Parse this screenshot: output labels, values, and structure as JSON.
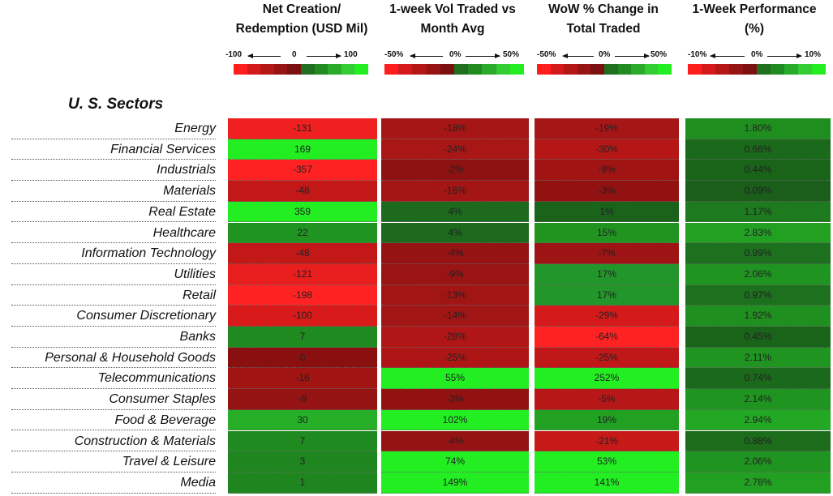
{
  "palette": {
    "swatches": [
      "#ff1e1e",
      "#d41a1a",
      "#b51616",
      "#961414",
      "#7a1010",
      "#1f6f1f",
      "#218a21",
      "#2aaa2a",
      "#33cc33",
      "#22ee22"
    ],
    "neg_strong": "#ff2222",
    "neg_mid": "#c81919",
    "neg_dark": "#9e1414",
    "pos_dark": "#1d6a1d",
    "pos_mid": "#22962a",
    "pos_strong": "#22ee22"
  },
  "section_title": "U. S. Sectors",
  "columns": [
    {
      "header_line1": "Net Creation/",
      "header_line2": "Redemption (USD Mil)",
      "scale_min": "-100",
      "scale_mid": "0",
      "scale_max": "100"
    },
    {
      "header_line1": "1-week Vol Traded vs",
      "header_line2": "Month Avg",
      "scale_min": "-50%",
      "scale_mid": "0%",
      "scale_max": "50%"
    },
    {
      "header_line1": "WoW % Change in",
      "header_line2": "Total Traded",
      "scale_min": "-50%",
      "scale_mid": "0%",
      "scale_max": "50%"
    },
    {
      "header_line1": "1-Week Performance",
      "header_line2": "(%)",
      "scale_min": "-10%",
      "scale_mid": "0%",
      "scale_max": "10%"
    }
  ],
  "chart_data": {
    "type": "table",
    "title": "U. S. Sectors",
    "columns": [
      "Net Creation/ Redemption (USD Mil)",
      "1-week Vol Traded vs Month Avg",
      "WoW % Change in Total Traded",
      "1-Week Performance (%)"
    ],
    "rows": [
      {
        "sector": "Energy",
        "values": [
          "-131",
          "-18%",
          "-19%",
          "1.80%"
        ],
        "colors": [
          "#f02020",
          "#a61616",
          "#a61616",
          "#1e8f1e"
        ]
      },
      {
        "sector": "Financial Services",
        "values": [
          "169",
          "-24%",
          "-30%",
          "0.66%"
        ],
        "colors": [
          "#22ee22",
          "#a81616",
          "#b51717",
          "#1b6a1b"
        ]
      },
      {
        "sector": "Industrials",
        "values": [
          "-357",
          "-2%",
          "-8%",
          "0.44%"
        ],
        "colors": [
          "#ff2222",
          "#8e1212",
          "#a01414",
          "#1a641a"
        ]
      },
      {
        "sector": "Materials",
        "values": [
          "-48",
          "-16%",
          "-3%",
          "0.09%"
        ],
        "colors": [
          "#c21818",
          "#a41515",
          "#921212",
          "#1a5e1a"
        ]
      },
      {
        "sector": "Real Estate",
        "values": [
          "359",
          "4%",
          "1%",
          "1.17%"
        ],
        "colors": [
          "#22ee22",
          "#1d6a1d",
          "#1b621b",
          "#1e7a1e"
        ]
      },
      {
        "sector": "Healthcare",
        "values": [
          "22",
          "4%",
          "15%",
          "2.83%"
        ],
        "colors": [
          "#209420",
          "#1d6a1d",
          "#21941f",
          "#22a022"
        ]
      },
      {
        "sector": "Information Technology",
        "values": [
          "-48",
          "-4%",
          "-7%",
          "0.99%"
        ],
        "colors": [
          "#c21818",
          "#961313",
          "#9e1414",
          "#1d701d"
        ]
      },
      {
        "sector": "Utilities",
        "values": [
          "-121",
          "-9%",
          "17%",
          "2.06%"
        ],
        "colors": [
          "#e81e1e",
          "#9a1414",
          "#22962a",
          "#209420"
        ]
      },
      {
        "sector": "Retail",
        "values": [
          "-198",
          "-13%",
          "17%",
          "0.97%"
        ],
        "colors": [
          "#ff2222",
          "#a21515",
          "#22962a",
          "#1d701d"
        ]
      },
      {
        "sector": "Consumer Discretionary",
        "values": [
          "-100",
          "-14%",
          "-29%",
          "1.92%"
        ],
        "colors": [
          "#d81a1a",
          "#a21515",
          "#d41a1a",
          "#1f901f"
        ]
      },
      {
        "sector": "Banks",
        "values": [
          "7",
          "-28%",
          "-64%",
          "0.45%"
        ],
        "colors": [
          "#1f8a1f",
          "#b01616",
          "#ff2222",
          "#1a641a"
        ]
      },
      {
        "sector": "Personal & Household Goods",
        "values": [
          "0",
          "-25%",
          "-25%",
          "2.11%"
        ],
        "colors": [
          "#8a1010",
          "#ae1616",
          "#c01818",
          "#209420"
        ]
      },
      {
        "sector": "Telecommunications",
        "values": [
          "-16",
          "55%",
          "252%",
          "0.74%"
        ],
        "colors": [
          "#a01414",
          "#22ee22",
          "#22ee22",
          "#1b6a1b"
        ]
      },
      {
        "sector": "Consumer Staples",
        "values": [
          "-9",
          "-3%",
          "-5%",
          "2.14%"
        ],
        "colors": [
          "#961313",
          "#921212",
          "#b81717",
          "#209420"
        ]
      },
      {
        "sector": "Food & Beverage",
        "values": [
          "30",
          "102%",
          "19%",
          "2.94%"
        ],
        "colors": [
          "#27b027",
          "#22ee22",
          "#22a022",
          "#22a822"
        ]
      },
      {
        "sector": "Construction & Materials",
        "values": [
          "7",
          "-4%",
          "-21%",
          "0.88%"
        ],
        "colors": [
          "#1f8a1f",
          "#961313",
          "#c81919",
          "#1c6c1c"
        ]
      },
      {
        "sector": "Travel & Leisure",
        "values": [
          "3",
          "74%",
          "53%",
          "2.06%"
        ],
        "colors": [
          "#1f861f",
          "#22ee22",
          "#22ee22",
          "#209420"
        ]
      },
      {
        "sector": "Media",
        "values": [
          "1",
          "149%",
          "141%",
          "2.78%"
        ],
        "colors": [
          "#1f861f",
          "#22ee22",
          "#22ee22",
          "#22a022"
        ]
      }
    ]
  }
}
